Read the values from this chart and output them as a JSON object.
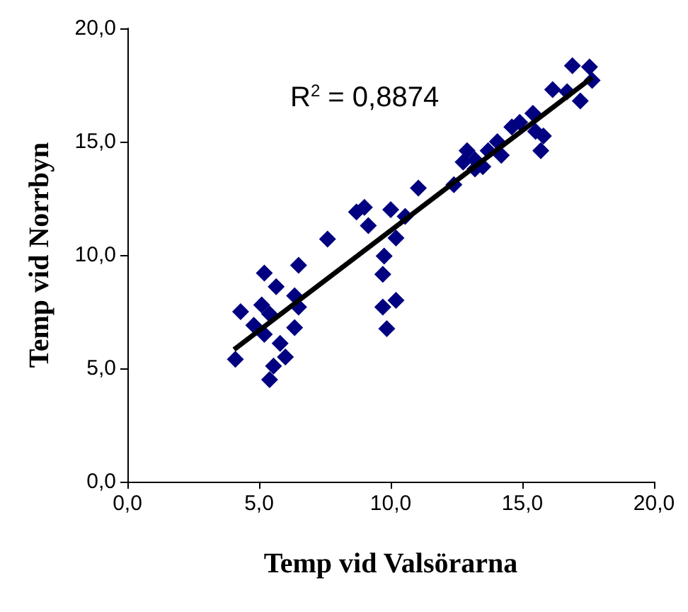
{
  "chart_data": {
    "type": "scatter",
    "xlabel": "Temp vid Valsörarna",
    "ylabel": "Temp vid Norrbyn",
    "annotations": [
      "R$^{2}$ = 0,8874"
    ],
    "xlim": [
      0,
      20
    ],
    "ylim": [
      0,
      20
    ],
    "xticks": [
      {
        "value": 0,
        "label": "0,0"
      },
      {
        "value": 5,
        "label": "5,0"
      },
      {
        "value": 10,
        "label": "10,0"
      },
      {
        "value": 15,
        "label": "15,0"
      },
      {
        "value": 20,
        "label": "20,0"
      }
    ],
    "yticks": [
      {
        "value": 0,
        "label": "0,0"
      },
      {
        "value": 5,
        "label": "5,0"
      },
      {
        "value": 10,
        "label": "10,0"
      },
      {
        "value": 15,
        "label": "15,0"
      },
      {
        "value": 20,
        "label": "20,0"
      }
    ],
    "grid": false,
    "series": [
      {
        "color": "#000080",
        "marker": "diamond",
        "x": [
          4.1,
          4.3,
          4.8,
          5.2,
          5.65,
          5.1,
          5.4,
          5.2,
          5.8,
          5.55,
          5.4,
          6.0,
          6.35,
          6.5,
          6.5,
          6.35,
          7.6,
          8.7,
          9.0,
          9.15,
          9.75,
          9.7,
          9.7,
          9.85,
          10.2,
          10.0,
          10.2,
          10.55,
          11.05,
          12.4,
          12.9,
          13.2,
          13.5,
          13.7,
          14.05,
          14.2,
          14.6,
          14.9,
          15.4,
          15.5,
          15.8,
          15.7,
          16.15,
          16.7,
          16.9,
          17.2,
          17.55,
          17.65,
          13.2,
          12.75
        ],
        "values": [
          5.4,
          7.5,
          6.9,
          9.2,
          8.6,
          7.8,
          7.4,
          6.5,
          6.1,
          5.1,
          4.5,
          5.5,
          8.2,
          9.55,
          7.7,
          6.8,
          10.7,
          11.9,
          12.1,
          11.3,
          9.95,
          9.15,
          7.7,
          6.75,
          8.0,
          12.0,
          10.75,
          11.7,
          12.95,
          13.1,
          14.6,
          13.8,
          13.9,
          14.6,
          15.0,
          14.4,
          15.65,
          15.85,
          16.25,
          15.45,
          15.25,
          14.6,
          17.3,
          17.2,
          18.35,
          16.8,
          18.3,
          17.7,
          14.2,
          14.1
        ]
      },
      {
        "type": "line",
        "color": "#000000",
        "marker": "none",
        "line_style": "solid",
        "x": [
          4.05,
          17.65
        ],
        "values": [
          5.83,
          17.83
        ]
      }
    ]
  }
}
